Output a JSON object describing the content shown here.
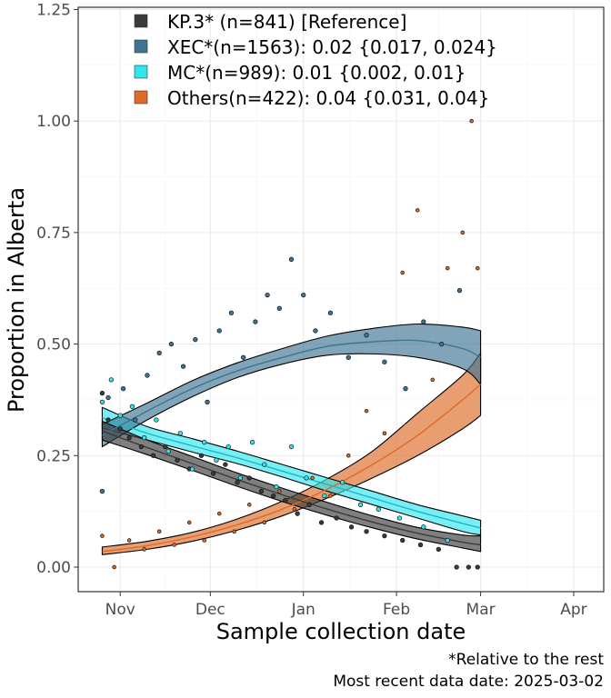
{
  "chart_data": {
    "type": "line",
    "xlabel": "Sample collection date",
    "ylabel": "Proportion in Alberta",
    "xlim": [
      "2024-10-18",
      "2025-04-11"
    ],
    "ylim": [
      -0.055,
      1.255
    ],
    "x_ticks": [
      {
        "date": "2024-11-01",
        "label": "Nov"
      },
      {
        "date": "2024-12-01",
        "label": "Dec"
      },
      {
        "date": "2025-01-01",
        "label": "Jan"
      },
      {
        "date": "2025-02-01",
        "label": "Feb"
      },
      {
        "date": "2025-03-01",
        "label": "Mar"
      },
      {
        "date": "2025-04-01",
        "label": "Apr"
      }
    ],
    "y_ticks": [
      {
        "value": 0,
        "label": "0.00"
      },
      {
        "value": 0.25,
        "label": "0.25"
      },
      {
        "value": 0.5,
        "label": "0.50"
      },
      {
        "value": 0.75,
        "label": "0.75"
      },
      {
        "value": 1.0,
        "label": "1.00"
      },
      {
        "value": 1.25,
        "label": "1.25"
      }
    ],
    "grid": true,
    "legend_position": "top-left",
    "series": [
      {
        "name": "KP.3* (n=841)  [Reference]",
        "color": "#3a3a3a",
        "x": [
          "2024-10-26",
          "2024-11-10",
          "2024-11-25",
          "2024-12-10",
          "2024-12-25",
          "2025-01-09",
          "2025-01-24",
          "2025-02-08",
          "2025-02-23",
          "2025-03-01"
        ],
        "y": [
          0.305,
          0.268,
          0.232,
          0.196,
          0.162,
          0.13,
          0.101,
          0.076,
          0.056,
          0.05
        ],
        "lower": [
          0.285,
          0.252,
          0.217,
          0.181,
          0.147,
          0.116,
          0.088,
          0.063,
          0.043,
          0.035
        ],
        "upper": [
          0.327,
          0.285,
          0.248,
          0.211,
          0.177,
          0.145,
          0.115,
          0.089,
          0.072,
          0.07
        ],
        "points": [
          [
            "2024-10-26",
            0.39
          ],
          [
            "2024-10-28",
            0.33
          ],
          [
            "2024-11-01",
            0.31
          ],
          [
            "2024-11-04",
            0.29
          ],
          [
            "2024-11-08",
            0.27
          ],
          [
            "2024-11-12",
            0.25
          ],
          [
            "2024-11-16",
            0.27
          ],
          [
            "2024-11-20",
            0.24
          ],
          [
            "2024-11-24",
            0.22
          ],
          [
            "2024-11-28",
            0.25
          ],
          [
            "2024-12-02",
            0.21
          ],
          [
            "2024-12-06",
            0.23
          ],
          [
            "2024-12-10",
            0.19
          ],
          [
            "2024-12-14",
            0.2
          ],
          [
            "2024-12-18",
            0.17
          ],
          [
            "2024-12-22",
            0.16
          ],
          [
            "2024-12-26",
            0.15
          ],
          [
            "2024-12-30",
            0.12
          ],
          [
            "2025-01-03",
            0.14
          ],
          [
            "2025-01-07",
            0.1
          ],
          [
            "2025-01-12",
            0.11
          ],
          [
            "2025-01-17",
            0.09
          ],
          [
            "2025-01-22",
            0.08
          ],
          [
            "2025-01-28",
            0.07
          ],
          [
            "2025-02-03",
            0.06
          ],
          [
            "2025-02-09",
            0.05
          ],
          [
            "2025-02-15",
            0.04
          ],
          [
            "2025-02-21",
            0.0
          ],
          [
            "2025-02-25",
            0.0
          ],
          [
            "2025-02-28",
            0.0
          ]
        ]
      },
      {
        "name": "XEC*(n=1563): 0.02 {0.017, 0.024}",
        "color": "#3f7392",
        "x": [
          "2024-10-26",
          "2024-11-10",
          "2024-11-25",
          "2024-12-10",
          "2024-12-25",
          "2025-01-09",
          "2025-01-24",
          "2025-02-08",
          "2025-02-23",
          "2025-03-01"
        ],
        "y": [
          0.295,
          0.35,
          0.4,
          0.44,
          0.47,
          0.495,
          0.505,
          0.508,
          0.49,
          0.47
        ],
        "lower": [
          0.27,
          0.33,
          0.382,
          0.425,
          0.455,
          0.475,
          0.478,
          0.47,
          0.445,
          0.41
        ],
        "upper": [
          0.32,
          0.368,
          0.418,
          0.458,
          0.49,
          0.518,
          0.535,
          0.545,
          0.538,
          0.53
        ],
        "points": [
          [
            "2024-10-26",
            0.17
          ],
          [
            "2024-10-28",
            0.38
          ],
          [
            "2024-11-02",
            0.4
          ],
          [
            "2024-11-06",
            0.33
          ],
          [
            "2024-11-10",
            0.43
          ],
          [
            "2024-11-14",
            0.48
          ],
          [
            "2024-11-18",
            0.5
          ],
          [
            "2024-11-22",
            0.45
          ],
          [
            "2024-11-26",
            0.51
          ],
          [
            "2024-11-30",
            0.37
          ],
          [
            "2024-12-04",
            0.53
          ],
          [
            "2024-12-08",
            0.57
          ],
          [
            "2024-12-12",
            0.47
          ],
          [
            "2024-12-16",
            0.55
          ],
          [
            "2024-12-20",
            0.61
          ],
          [
            "2024-12-24",
            0.58
          ],
          [
            "2024-12-28",
            0.69
          ],
          [
            "2025-01-01",
            0.61
          ],
          [
            "2025-01-05",
            0.53
          ],
          [
            "2025-01-10",
            0.57
          ],
          [
            "2025-01-16",
            0.47
          ],
          [
            "2025-01-22",
            0.52
          ],
          [
            "2025-01-28",
            0.46
          ],
          [
            "2025-02-04",
            0.4
          ],
          [
            "2025-02-10",
            0.55
          ],
          [
            "2025-02-16",
            0.5
          ],
          [
            "2025-02-22",
            0.62
          ]
        ]
      },
      {
        "name": "MC*(n=989): 0.01 {0.002, 0.01}",
        "color": "#2fe6ee",
        "x": [
          "2024-10-26",
          "2024-11-10",
          "2024-11-25",
          "2024-12-10",
          "2024-12-25",
          "2025-01-09",
          "2025-01-24",
          "2025-02-08",
          "2025-02-23",
          "2025-03-01"
        ],
        "y": [
          0.335,
          0.3,
          0.272,
          0.245,
          0.215,
          0.185,
          0.155,
          0.125,
          0.098,
          0.088
        ],
        "lower": [
          0.312,
          0.285,
          0.258,
          0.232,
          0.202,
          0.17,
          0.14,
          0.11,
          0.08,
          0.072
        ],
        "upper": [
          0.358,
          0.315,
          0.288,
          0.26,
          0.23,
          0.2,
          0.17,
          0.14,
          0.115,
          0.105
        ],
        "points": [
          [
            "2024-10-26",
            0.37
          ],
          [
            "2024-10-29",
            0.42
          ],
          [
            "2024-11-01",
            0.34
          ],
          [
            "2024-11-05",
            0.36
          ],
          [
            "2024-11-09",
            0.29
          ],
          [
            "2024-11-13",
            0.33
          ],
          [
            "2024-11-17",
            0.26
          ],
          [
            "2024-11-21",
            0.3
          ],
          [
            "2024-11-25",
            0.22
          ],
          [
            "2024-11-29",
            0.28
          ],
          [
            "2024-12-03",
            0.24
          ],
          [
            "2024-12-07",
            0.27
          ],
          [
            "2024-12-11",
            0.2
          ],
          [
            "2024-12-15",
            0.28
          ],
          [
            "2024-12-19",
            0.23
          ],
          [
            "2024-12-23",
            0.18
          ],
          [
            "2024-12-28",
            0.27
          ],
          [
            "2025-01-02",
            0.2
          ],
          [
            "2025-01-08",
            0.16
          ],
          [
            "2025-01-14",
            0.19
          ],
          [
            "2025-01-20",
            0.14
          ],
          [
            "2025-01-26",
            0.13
          ],
          [
            "2025-02-02",
            0.11
          ],
          [
            "2025-02-10",
            0.09
          ],
          [
            "2025-02-18",
            0.06
          ]
        ]
      },
      {
        "name": "Others(n=422): 0.04 {0.031, 0.04}",
        "color": "#dd6a26",
        "x": [
          "2024-10-26",
          "2024-11-10",
          "2024-11-25",
          "2024-12-10",
          "2024-12-25",
          "2025-01-09",
          "2025-01-24",
          "2025-02-08",
          "2025-02-23",
          "2025-03-01"
        ],
        "y": [
          0.035,
          0.048,
          0.068,
          0.095,
          0.13,
          0.175,
          0.23,
          0.295,
          0.375,
          0.41
        ],
        "lower": [
          0.028,
          0.04,
          0.058,
          0.083,
          0.115,
          0.155,
          0.2,
          0.25,
          0.31,
          0.34
        ],
        "upper": [
          0.045,
          0.058,
          0.078,
          0.108,
          0.148,
          0.198,
          0.26,
          0.345,
          0.43,
          0.48
        ],
        "points": [
          [
            "2024-10-26",
            0.07
          ],
          [
            "2024-10-30",
            0.0
          ],
          [
            "2024-11-04",
            0.06
          ],
          [
            "2024-11-09",
            0.04
          ],
          [
            "2024-11-14",
            0.08
          ],
          [
            "2024-11-19",
            0.05
          ],
          [
            "2024-11-24",
            0.1
          ],
          [
            "2024-11-29",
            0.06
          ],
          [
            "2024-12-04",
            0.12
          ],
          [
            "2024-12-09",
            0.08
          ],
          [
            "2024-12-14",
            0.14
          ],
          [
            "2024-12-19",
            0.1
          ],
          [
            "2024-12-24",
            0.17
          ],
          [
            "2024-12-29",
            0.13
          ],
          [
            "2025-01-04",
            0.2
          ],
          [
            "2025-01-10",
            0.16
          ],
          [
            "2025-01-16",
            0.25
          ],
          [
            "2025-01-22",
            0.35
          ],
          [
            "2025-01-28",
            0.3
          ],
          [
            "2025-02-03",
            0.66
          ],
          [
            "2025-02-08",
            0.8
          ],
          [
            "2025-02-13",
            0.42
          ],
          [
            "2025-02-18",
            0.67
          ],
          [
            "2025-02-23",
            0.75
          ],
          [
            "2025-02-26",
            1.0
          ],
          [
            "2025-02-28",
            0.67
          ]
        ]
      }
    ]
  },
  "caption": {
    "line1": "*Relative to the rest",
    "line2": "Most recent data date: 2025-03-02"
  }
}
